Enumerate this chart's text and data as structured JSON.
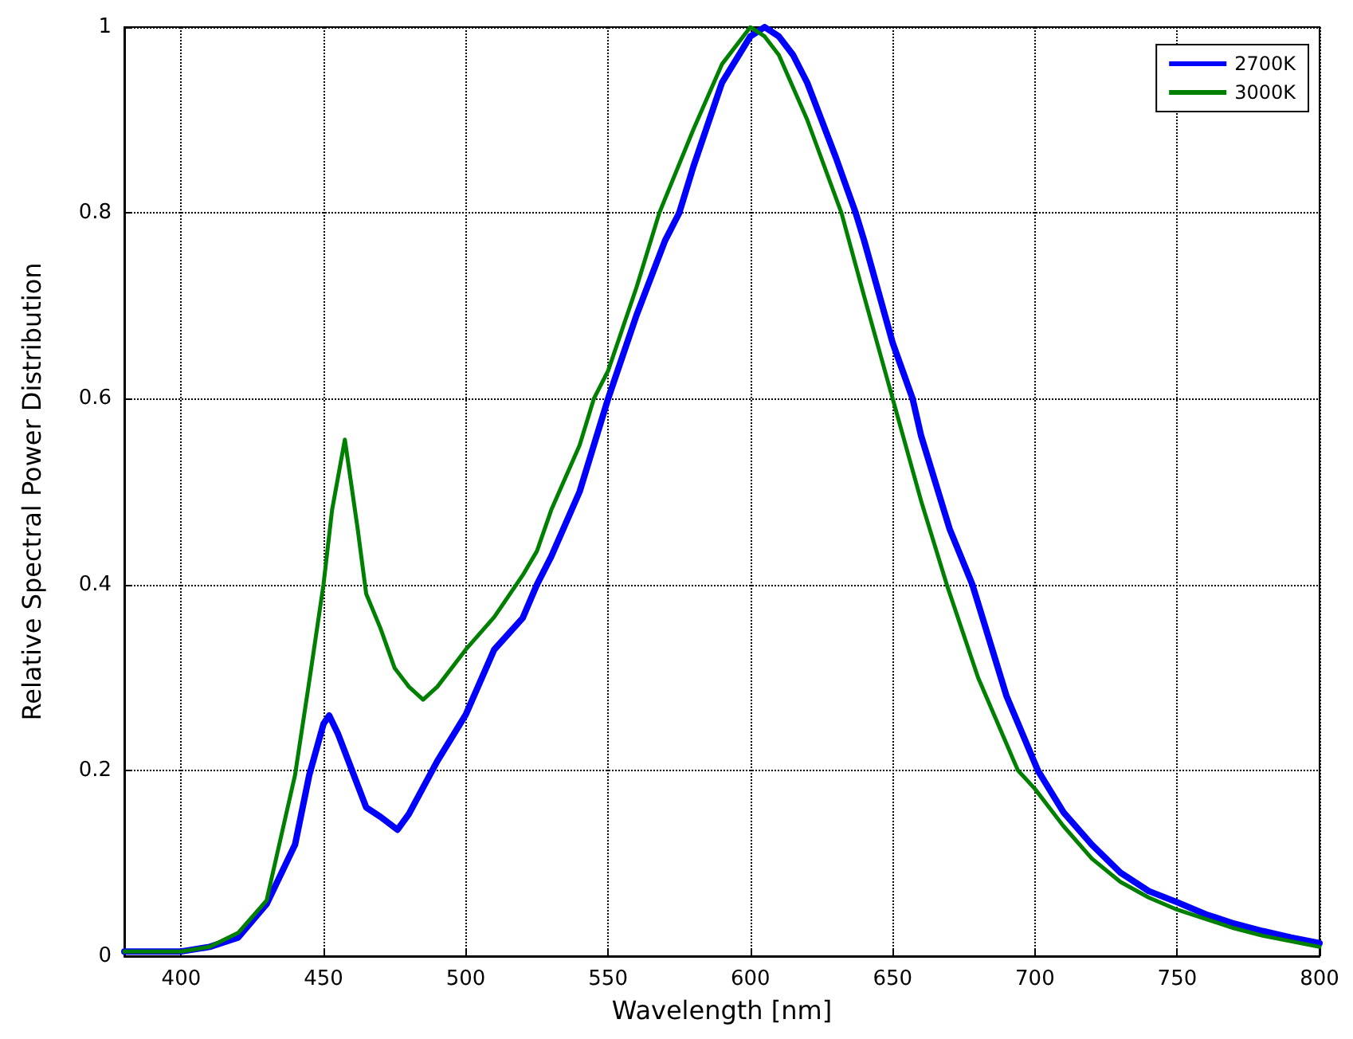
{
  "chart_data": {
    "type": "line",
    "xlabel": "Wavelength [nm]",
    "ylabel": "Relative Spectral Power Distribution",
    "xlim": [
      380,
      800
    ],
    "xticks": [
      400,
      450,
      500,
      550,
      600,
      650,
      700,
      750,
      800
    ],
    "ylim": [
      0,
      1
    ],
    "yticks": [
      0,
      0.2,
      0.4,
      0.6,
      0.8,
      1.0
    ],
    "grid": true,
    "legend": "top right",
    "marker": "none",
    "line_style": "solid",
    "series": [
      {
        "name": "2700K",
        "color": "#0000ff",
        "x": [
          380,
          400,
          410,
          420,
          430,
          440,
          445,
          450,
          452,
          455,
          460,
          465,
          470,
          476,
          480,
          490,
          500,
          510,
          520,
          525,
          530,
          540,
          550,
          560,
          570,
          575,
          580,
          590,
          600,
          605,
          610,
          615,
          620,
          630,
          637,
          640,
          650,
          657,
          660,
          670,
          678,
          690,
          701,
          710,
          720,
          730,
          740,
          750,
          760,
          770,
          780,
          790,
          800
        ],
        "values": [
          0.005,
          0.005,
          0.01,
          0.02,
          0.056,
          0.12,
          0.195,
          0.25,
          0.259,
          0.24,
          0.2,
          0.16,
          0.15,
          0.136,
          0.153,
          0.21,
          0.26,
          0.33,
          0.364,
          0.4,
          0.43,
          0.5,
          0.6,
          0.69,
          0.77,
          0.8,
          0.85,
          0.94,
          0.99,
          1.0,
          0.99,
          0.97,
          0.94,
          0.86,
          0.8,
          0.77,
          0.66,
          0.6,
          0.56,
          0.46,
          0.4,
          0.28,
          0.2,
          0.155,
          0.12,
          0.09,
          0.07,
          0.058,
          0.045,
          0.035,
          0.027,
          0.02,
          0.014
        ]
      },
      {
        "name": "3000K",
        "color": "#008000",
        "x": [
          380,
          400,
          410,
          420,
          430,
          440,
          445,
          450,
          453,
          457.5,
          462,
          465,
          470,
          475,
          480,
          485,
          490,
          500,
          510,
          520,
          525,
          530,
          540,
          545,
          550,
          560,
          568,
          580,
          590,
          600,
          605,
          610,
          620,
          632,
          640,
          650,
          660,
          669,
          680,
          694,
          700,
          710,
          720,
          730,
          740,
          750,
          760,
          770,
          780,
          790,
          800
        ],
        "values": [
          0.005,
          0.005,
          0.01,
          0.025,
          0.06,
          0.195,
          0.296,
          0.4,
          0.48,
          0.556,
          0.46,
          0.39,
          0.353,
          0.31,
          0.29,
          0.276,
          0.29,
          0.33,
          0.365,
          0.41,
          0.436,
          0.48,
          0.55,
          0.6,
          0.63,
          0.72,
          0.8,
          0.89,
          0.96,
          1.0,
          0.99,
          0.97,
          0.9,
          0.8,
          0.71,
          0.6,
          0.49,
          0.4,
          0.3,
          0.2,
          0.18,
          0.14,
          0.105,
          0.08,
          0.063,
          0.05,
          0.04,
          0.03,
          0.022,
          0.016,
          0.01
        ]
      }
    ]
  }
}
